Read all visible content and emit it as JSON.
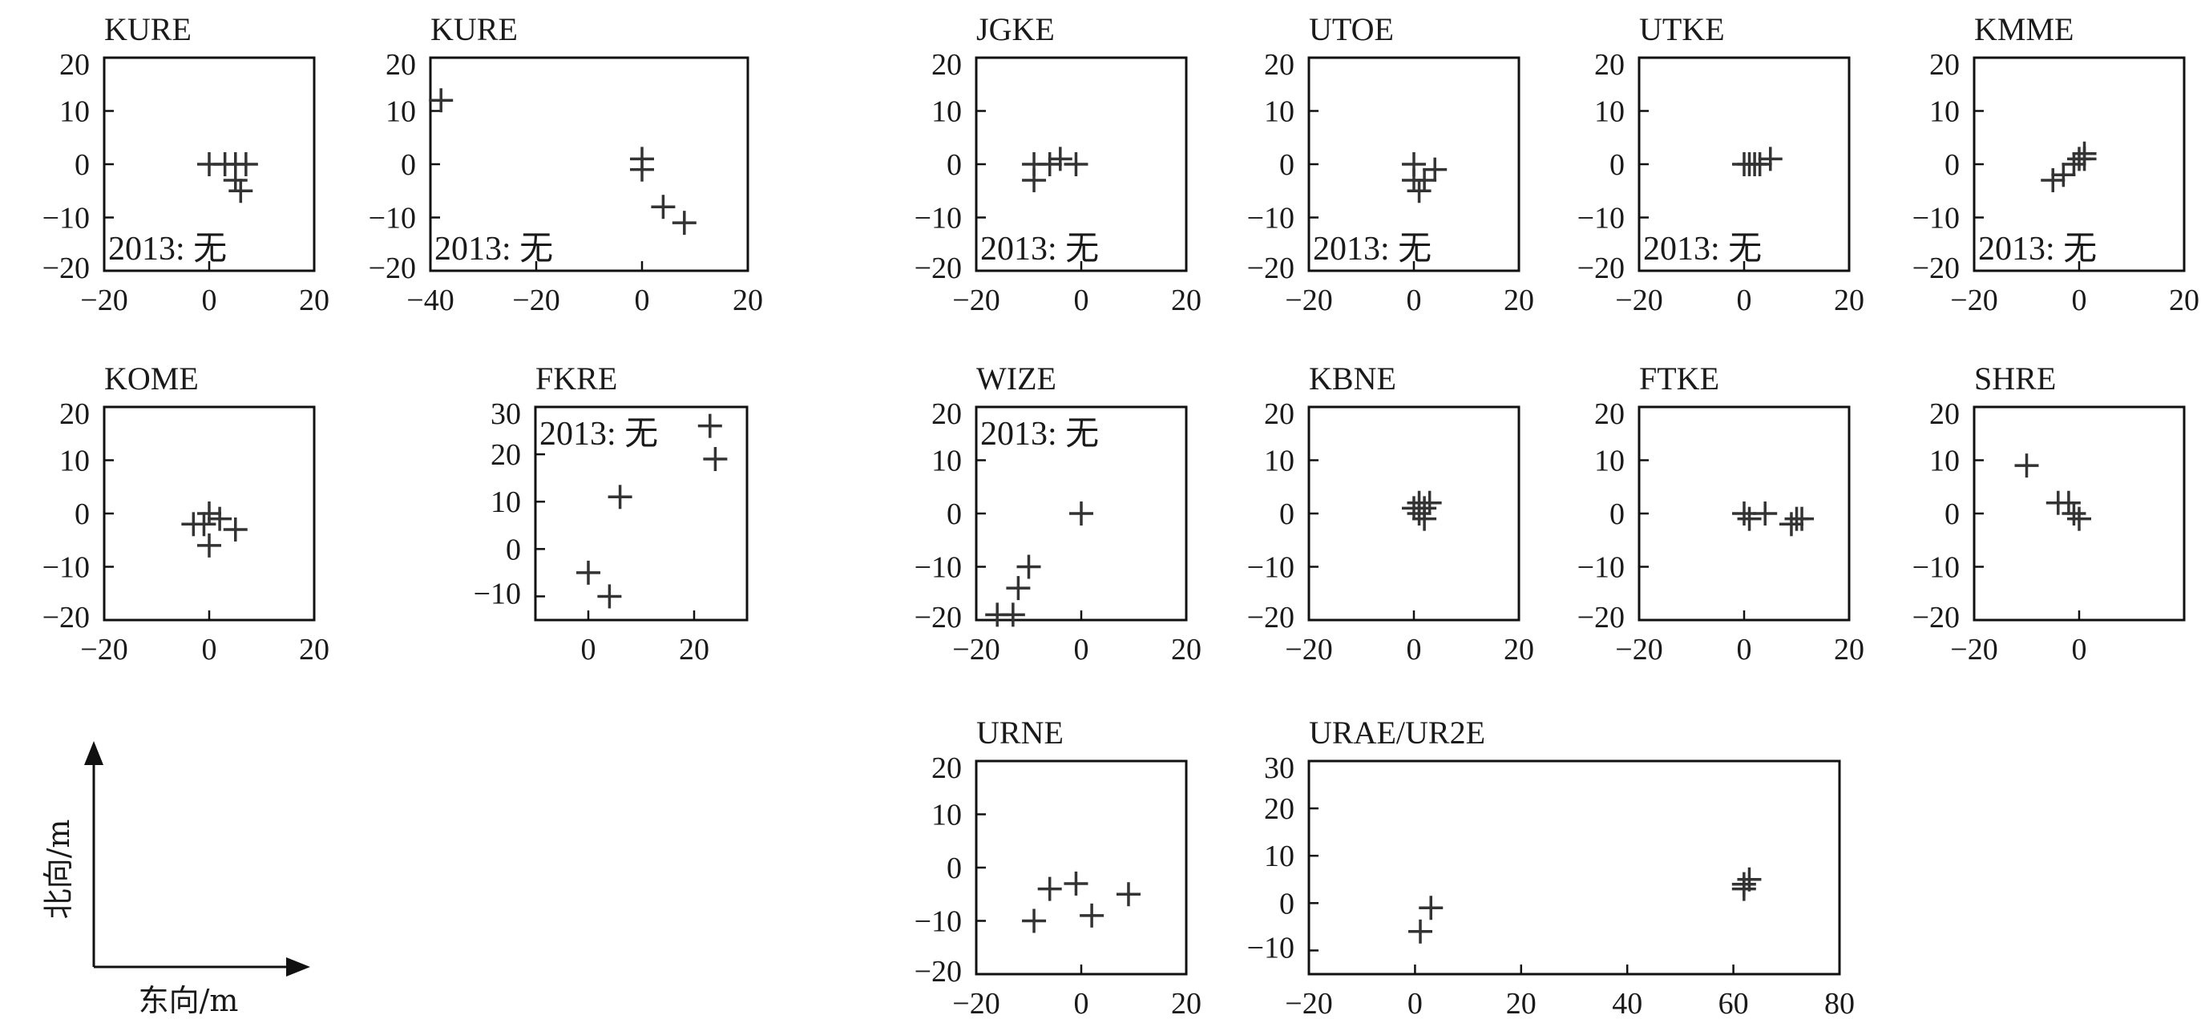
{
  "legend": {
    "x_label": "东向/m",
    "y_label": "北向/m"
  },
  "note_text": "2013: 无",
  "chart_data": [
    {
      "type": "scatter",
      "title": "KURE",
      "xlim": [
        -20,
        20
      ],
      "ylim": [
        -20,
        20
      ],
      "xticks": [
        "−20",
        "0",
        "20"
      ],
      "yticks": [
        "20",
        "10",
        "0",
        "−10",
        "−20"
      ],
      "note": true,
      "points": [
        [
          0,
          0
        ],
        [
          3,
          0
        ],
        [
          5,
          0
        ],
        [
          7,
          0
        ],
        [
          5,
          -3
        ],
        [
          6,
          -5
        ]
      ]
    },
    {
      "type": "scatter",
      "title": "KURE",
      "xlim": [
        -40,
        20
      ],
      "ylim": [
        -20,
        20
      ],
      "xticks": [
        "−40",
        "−20",
        "0",
        "20"
      ],
      "yticks": [
        "20",
        "10",
        "0",
        "−10",
        "−20"
      ],
      "note": true,
      "points": [
        [
          -38,
          12
        ],
        [
          0,
          1
        ],
        [
          0,
          -1
        ],
        [
          4,
          -8
        ],
        [
          8,
          -11
        ]
      ]
    },
    {
      "type": "scatter",
      "title": "JGKE",
      "xlim": [
        -20,
        20
      ],
      "ylim": [
        -20,
        20
      ],
      "xticks": [
        "−20",
        "0",
        "20"
      ],
      "yticks": [
        "20",
        "10",
        "0",
        "−10",
        "−20"
      ],
      "note": true,
      "points": [
        [
          -9,
          0
        ],
        [
          -6,
          0
        ],
        [
          -4,
          1
        ],
        [
          -1,
          0
        ],
        [
          -9,
          -3
        ]
      ]
    },
    {
      "type": "scatter",
      "title": "UTOE",
      "xlim": [
        -20,
        20
      ],
      "ylim": [
        -20,
        20
      ],
      "xticks": [
        "−20",
        "0",
        "20"
      ],
      "yticks": [
        "20",
        "10",
        "0",
        "−10",
        "−20"
      ],
      "note": true,
      "points": [
        [
          0,
          0
        ],
        [
          0,
          -3
        ],
        [
          2,
          -3
        ],
        [
          1,
          -5
        ],
        [
          4,
          -1
        ]
      ]
    },
    {
      "type": "scatter",
      "title": "UTKE",
      "xlim": [
        -20,
        20
      ],
      "ylim": [
        -20,
        20
      ],
      "xticks": [
        "−20",
        "0",
        "20"
      ],
      "yticks": [
        "20",
        "10",
        "0",
        "−10",
        "−20"
      ],
      "note": true,
      "points": [
        [
          0,
          0
        ],
        [
          1,
          0
        ],
        [
          2,
          0
        ],
        [
          3,
          0
        ],
        [
          5,
          1
        ]
      ]
    },
    {
      "type": "scatter",
      "title": "KMME",
      "xlim": [
        -20,
        20
      ],
      "ylim": [
        -20,
        20
      ],
      "xticks": [
        "−20",
        "0",
        "20"
      ],
      "yticks": [
        "20",
        "10",
        "0",
        "−10",
        "−20"
      ],
      "note": true,
      "points": [
        [
          -5,
          -3
        ],
        [
          -3,
          -2
        ],
        [
          -1,
          0
        ],
        [
          0,
          1
        ],
        [
          1,
          1
        ],
        [
          1,
          2
        ]
      ]
    },
    {
      "type": "scatter",
      "title": "KOME",
      "xlim": [
        -20,
        20
      ],
      "ylim": [
        -20,
        20
      ],
      "xticks": [
        "−20",
        "0",
        "20"
      ],
      "yticks": [
        "20",
        "10",
        "0",
        "−10",
        "−20"
      ],
      "note": false,
      "points": [
        [
          0,
          0
        ],
        [
          -3,
          -2
        ],
        [
          -1,
          -2
        ],
        [
          2,
          -1
        ],
        [
          0,
          -6
        ],
        [
          5,
          -3
        ]
      ]
    },
    {
      "type": "scatter",
      "title": "FKRE",
      "xlim": [
        -10,
        30
      ],
      "ylim": [
        -15,
        30
      ],
      "xticks": [
        "0",
        "20"
      ],
      "yticks": [
        "30",
        "20",
        "10",
        "0",
        "−10"
      ],
      "note": true,
      "points": [
        [
          23,
          26
        ],
        [
          24,
          19
        ],
        [
          6,
          11
        ],
        [
          0,
          -5
        ],
        [
          4,
          -10
        ]
      ]
    },
    {
      "type": "scatter",
      "title": "WIZE",
      "xlim": [
        -20,
        20
      ],
      "ylim": [
        -20,
        20
      ],
      "xticks": [
        "−20",
        "0",
        "20"
      ],
      "yticks": [
        "20",
        "10",
        "0",
        "−10",
        "−20"
      ],
      "note": true,
      "points": [
        [
          0,
          0
        ],
        [
          -10,
          -10
        ],
        [
          -12,
          -14
        ],
        [
          -13,
          -19
        ],
        [
          -16,
          -19
        ]
      ]
    },
    {
      "type": "scatter",
      "title": "KBNE",
      "xlim": [
        -20,
        20
      ],
      "ylim": [
        -20,
        20
      ],
      "xticks": [
        "−20",
        "0",
        "20"
      ],
      "yticks": [
        "20",
        "10",
        "0",
        "−10",
        "−20"
      ],
      "note": false,
      "points": [
        [
          0,
          1
        ],
        [
          1,
          2
        ],
        [
          2,
          1
        ],
        [
          3,
          2
        ],
        [
          1,
          0
        ],
        [
          2,
          -1
        ]
      ]
    },
    {
      "type": "scatter",
      "title": "FTKE",
      "xlim": [
        -20,
        20
      ],
      "ylim": [
        -20,
        20
      ],
      "xticks": [
        "−20",
        "0",
        "20"
      ],
      "yticks": [
        "20",
        "10",
        "0",
        "−10",
        "−20"
      ],
      "note": false,
      "points": [
        [
          0,
          0
        ],
        [
          1,
          -1
        ],
        [
          4,
          0
        ],
        [
          9,
          -2
        ],
        [
          10,
          -1
        ],
        [
          11,
          -1
        ]
      ]
    },
    {
      "type": "scatter",
      "title": "SHRE",
      "xlim": [
        -20,
        20
      ],
      "ylim": [
        -20,
        20
      ],
      "xticks": [
        "−20",
        "0"
      ],
      "yticks": [
        "20",
        "10",
        "0",
        "−10",
        "−20"
      ],
      "note": false,
      "points": [
        [
          -10,
          9
        ],
        [
          -4,
          2
        ],
        [
          -2,
          2
        ],
        [
          -1,
          0
        ],
        [
          0,
          -1
        ]
      ]
    },
    {
      "type": "scatter",
      "title": "URNE",
      "xlim": [
        -20,
        20
      ],
      "ylim": [
        -20,
        20
      ],
      "xticks": [
        "−20",
        "0",
        "20"
      ],
      "yticks": [
        "20",
        "10",
        "0",
        "−10",
        "−20"
      ],
      "note": false,
      "points": [
        [
          -6,
          -4
        ],
        [
          -1,
          -3
        ],
        [
          -9,
          -10
        ],
        [
          2,
          -9
        ],
        [
          9,
          -5
        ]
      ]
    },
    {
      "type": "scatter",
      "title": "URAE/UR2E",
      "xlim": [
        -20,
        80
      ],
      "ylim": [
        -15,
        30
      ],
      "xticks": [
        "−20",
        "0",
        "20",
        "40",
        "60",
        "80"
      ],
      "yticks": [
        "30",
        "20",
        "10",
        "0",
        "−10"
      ],
      "note": false,
      "points": [
        [
          3,
          -1
        ],
        [
          1,
          -6
        ],
        [
          62,
          4
        ],
        [
          63,
          5
        ],
        [
          62,
          3
        ]
      ]
    }
  ]
}
